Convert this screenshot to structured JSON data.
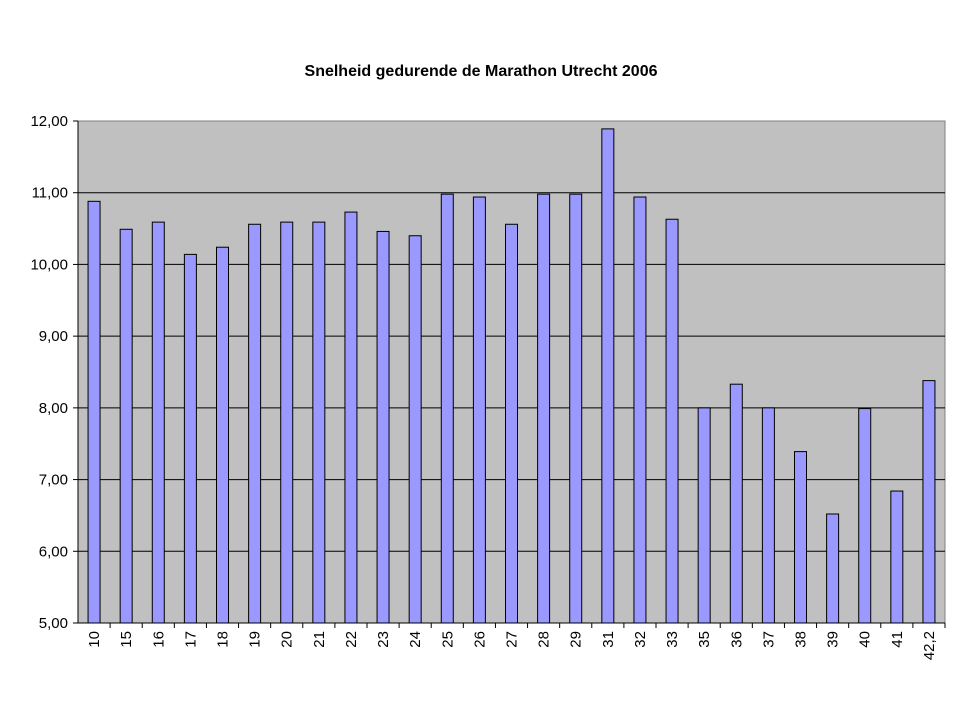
{
  "chart_data": {
    "type": "bar",
    "title": "Snelheid gedurende de Marathon Utrecht 2006",
    "xlabel": "",
    "ylabel": "",
    "categories": [
      "10",
      "15",
      "16",
      "17",
      "18",
      "19",
      "20",
      "21",
      "22",
      "23",
      "24",
      "25",
      "26",
      "27",
      "28",
      "29",
      "31",
      "32",
      "33",
      "35",
      "36",
      "37",
      "38",
      "39",
      "40",
      "41",
      "42,2"
    ],
    "values": [
      10.88,
      10.49,
      10.59,
      10.14,
      10.24,
      10.56,
      10.59,
      10.59,
      10.73,
      10.46,
      10.4,
      10.98,
      10.94,
      10.56,
      10.98,
      10.98,
      11.89,
      10.94,
      10.63,
      8.0,
      8.33,
      8.0,
      7.39,
      6.52,
      7.99,
      6.84,
      8.38
    ],
    "ylim": [
      5,
      12
    ],
    "yticks": [
      "5,00",
      "6,00",
      "7,00",
      "8,00",
      "9,00",
      "10,00",
      "11,00",
      "12,00"
    ],
    "grid": true,
    "legend": "none",
    "colors": {
      "bar": "#9999ff",
      "bar_stroke": "#000000",
      "plot_bg": "#c0c0c0",
      "gridline": "#000000"
    }
  }
}
